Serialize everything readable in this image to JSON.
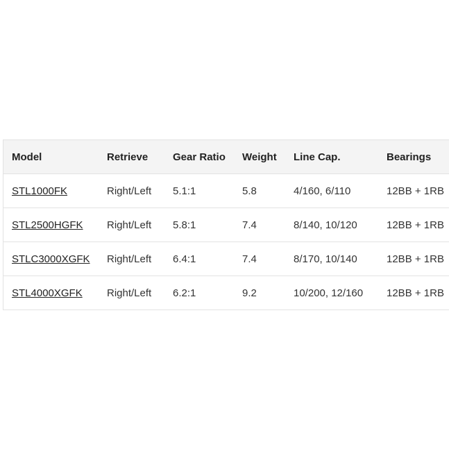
{
  "table": {
    "headers": [
      "Model",
      "Retrieve",
      "Gear Ratio",
      "Weight",
      "Line Cap.",
      "Bearings"
    ],
    "rows": [
      [
        "STL1000FK",
        "Right/Left",
        "5.1:1",
        "5.8",
        "4/160, 6/110",
        "12BB + 1RB"
      ],
      [
        "STL2500HGFK",
        "Right/Left",
        "5.8:1",
        "7.4",
        "8/140, 10/120",
        "12BB + 1RB"
      ],
      [
        "STLC3000XGFK",
        "Right/Left",
        "6.4:1",
        "7.4",
        "8/170, 10/140",
        "12BB + 1RB"
      ],
      [
        "STL4000XGFK",
        "Right/Left",
        "6.2:1",
        "9.2",
        "10/200, 12/160",
        "12BB + 1RB"
      ]
    ]
  }
}
